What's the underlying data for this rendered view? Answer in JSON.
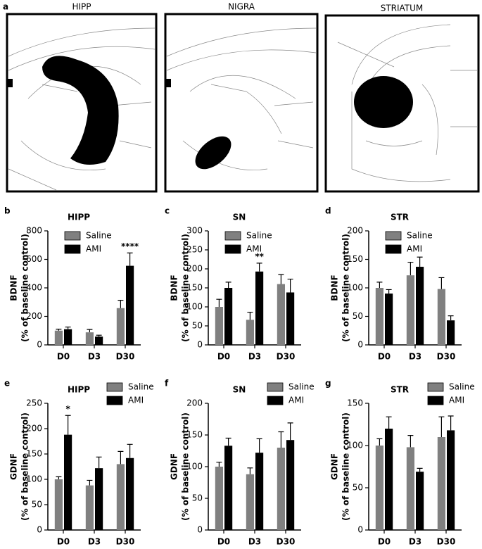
{
  "panel_a": {
    "label": "a",
    "images": [
      {
        "title": "HIPP"
      },
      {
        "title": "NIGRA"
      },
      {
        "title": "STRIATUM"
      }
    ]
  },
  "chart_data": [
    {
      "type": "bar",
      "panel": "b",
      "title": "HIPP",
      "ylabel": [
        "BDNF",
        "(% of baseline control)"
      ],
      "categories": [
        "D0",
        "D3",
        "D30"
      ],
      "ylim": [
        0,
        800
      ],
      "yticks": [
        0,
        200,
        400,
        600,
        800
      ],
      "series": [
        {
          "name": "Saline",
          "color": "#808080",
          "values": [
            100,
            88,
            258
          ],
          "errors": [
            10,
            20,
            55
          ],
          "annotations": [
            null,
            null,
            null
          ]
        },
        {
          "name": "AMI",
          "color": "#000000",
          "values": [
            110,
            58,
            555
          ],
          "errors": [
            15,
            10,
            90
          ],
          "annotations": [
            null,
            null,
            "****"
          ]
        }
      ]
    },
    {
      "type": "bar",
      "panel": "c",
      "title": "SN",
      "ylabel": [
        "BDNF",
        "(% of baseline control)"
      ],
      "categories": [
        "D0",
        "D3",
        "D30"
      ],
      "ylim": [
        0,
        300
      ],
      "yticks": [
        0,
        50,
        100,
        150,
        200,
        250,
        300
      ],
      "series": [
        {
          "name": "Saline",
          "color": "#808080",
          "values": [
            100,
            66,
            160
          ],
          "errors": [
            20,
            20,
            25
          ],
          "annotations": [
            null,
            null,
            null
          ]
        },
        {
          "name": "AMI",
          "color": "#000000",
          "values": [
            150,
            193,
            138
          ],
          "errors": [
            15,
            22,
            35
          ],
          "annotations": [
            null,
            "**",
            null
          ]
        }
      ]
    },
    {
      "type": "bar",
      "panel": "d",
      "title": "STR",
      "ylabel": [
        "BDNF",
        "(% of baseline control)"
      ],
      "categories": [
        "D0",
        "D3",
        "D30"
      ],
      "ylim": [
        0,
        200
      ],
      "yticks": [
        0,
        50,
        100,
        150,
        200
      ],
      "series": [
        {
          "name": "Saline",
          "color": "#808080",
          "values": [
            100,
            122,
            98
          ],
          "errors": [
            10,
            23,
            20
          ],
          "annotations": [
            null,
            null,
            null
          ]
        },
        {
          "name": "AMI",
          "color": "#000000",
          "values": [
            90,
            137,
            43
          ],
          "errors": [
            7,
            17,
            8
          ],
          "annotations": [
            null,
            null,
            null
          ]
        }
      ]
    },
    {
      "type": "bar",
      "panel": "e",
      "title": "HIPP",
      "ylabel": [
        "GDNF",
        "(% of baseline control)"
      ],
      "categories": [
        "D0",
        "D3",
        "D30"
      ],
      "ylim": [
        0,
        250
      ],
      "yticks": [
        0,
        50,
        100,
        150,
        200,
        250
      ],
      "series": [
        {
          "name": "Saline",
          "color": "#808080",
          "values": [
            100,
            88,
            130
          ],
          "errors": [
            5,
            10,
            25
          ],
          "annotations": [
            null,
            null,
            null
          ]
        },
        {
          "name": "AMI",
          "color": "#000000",
          "values": [
            188,
            122,
            142
          ],
          "errors": [
            38,
            22,
            27
          ],
          "annotations": [
            "*",
            null,
            null
          ]
        }
      ]
    },
    {
      "type": "bar",
      "panel": "f",
      "title": "SN",
      "ylabel": [
        "GDNF",
        "(% of baseline control)"
      ],
      "categories": [
        "D0",
        "D3",
        "D30"
      ],
      "ylim": [
        0,
        200
      ],
      "yticks": [
        0,
        50,
        100,
        150,
        200
      ],
      "series": [
        {
          "name": "Saline",
          "color": "#808080",
          "values": [
            100,
            88,
            130
          ],
          "errors": [
            7,
            10,
            25
          ],
          "annotations": [
            null,
            null,
            null
          ]
        },
        {
          "name": "AMI",
          "color": "#000000",
          "values": [
            133,
            122,
            142
          ],
          "errors": [
            12,
            22,
            27
          ],
          "annotations": [
            null,
            null,
            null
          ]
        }
      ]
    },
    {
      "type": "bar",
      "panel": "g",
      "title": "STR",
      "ylabel": [
        "GDNF",
        "(% of baseline control)"
      ],
      "categories": [
        "D0",
        "D3",
        "D30"
      ],
      "ylim": [
        0,
        150
      ],
      "yticks": [
        0,
        50,
        100,
        150
      ],
      "series": [
        {
          "name": "Saline",
          "color": "#808080",
          "values": [
            100,
            98,
            110
          ],
          "errors": [
            8,
            14,
            24
          ],
          "annotations": [
            null,
            null,
            null
          ]
        },
        {
          "name": "AMI",
          "color": "#000000",
          "values": [
            120,
            69,
            118
          ],
          "errors": [
            14,
            4,
            17
          ],
          "annotations": [
            null,
            null,
            null
          ]
        }
      ]
    }
  ]
}
